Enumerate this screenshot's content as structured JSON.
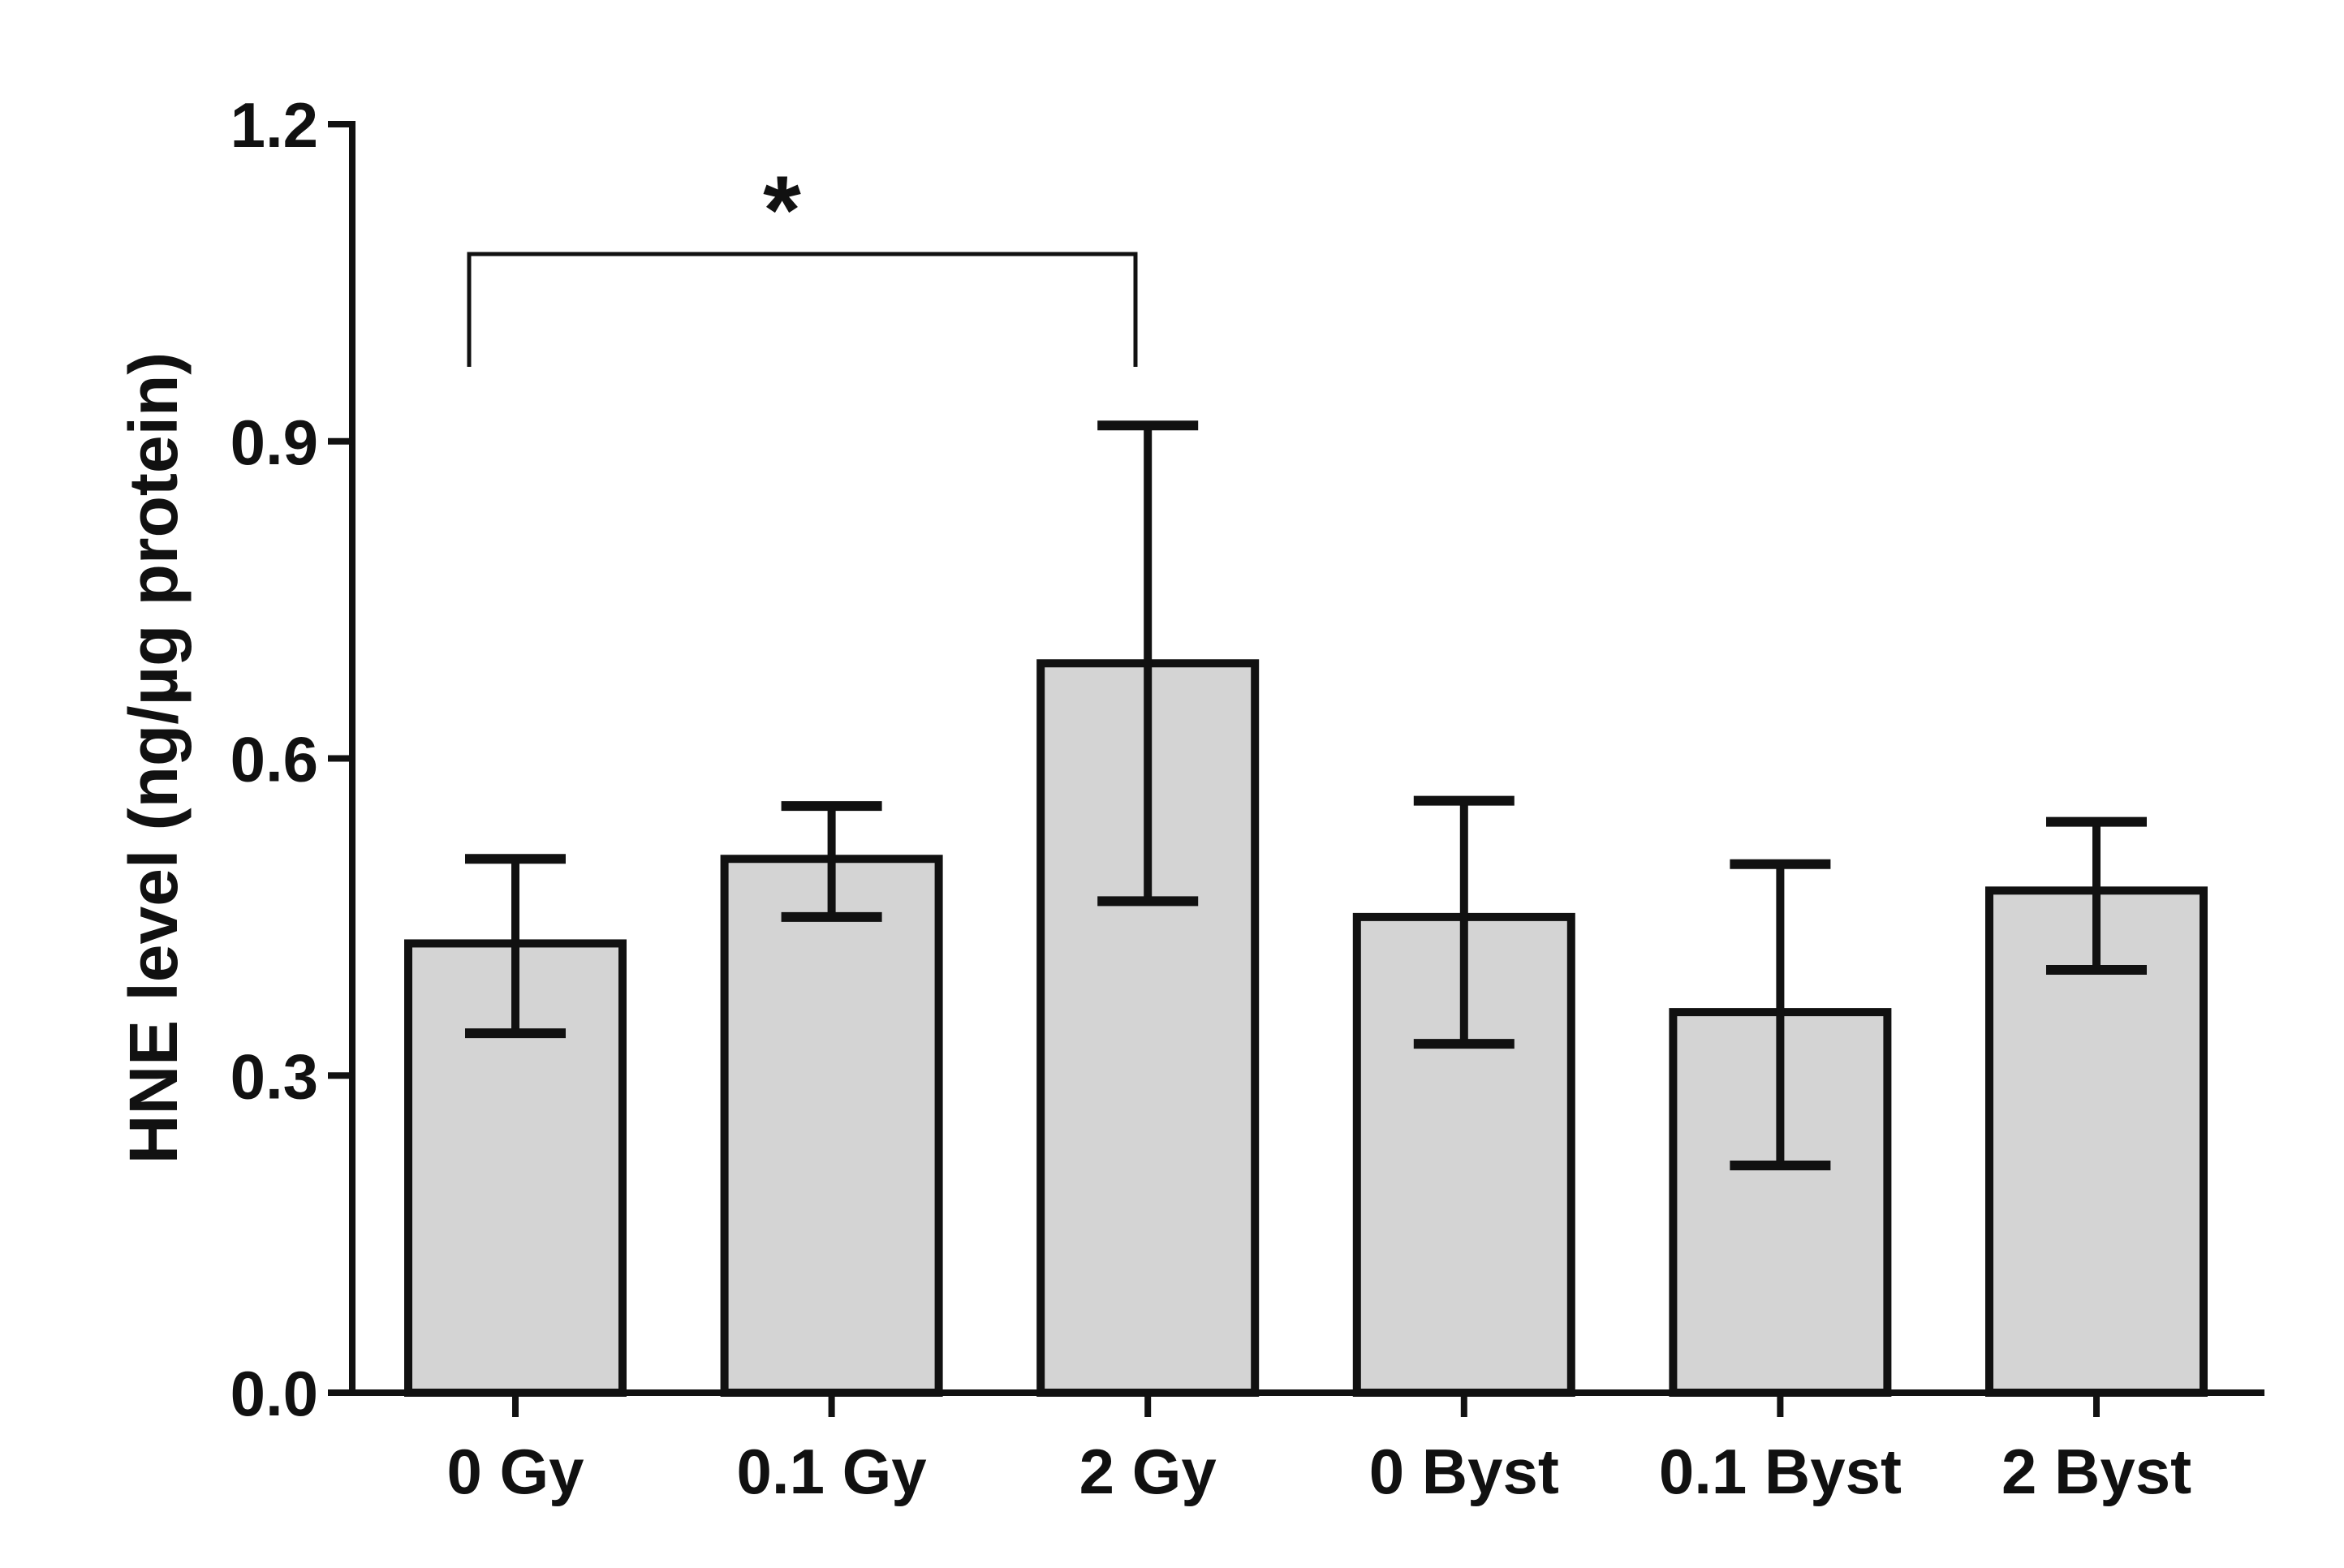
{
  "chart_data": {
    "type": "bar",
    "title": "",
    "xlabel": "",
    "ylabel": "HNE level (ng/µg protein)",
    "ylim": [
      0,
      1.2
    ],
    "yticks": [
      0.0,
      0.3,
      0.6,
      0.9,
      1.2
    ],
    "ytick_labels": [
      "0.0",
      "0.3",
      "0.6",
      "0.9",
      "1.2"
    ],
    "grid": false,
    "categories": [
      "0 Gy",
      "0.1 Gy",
      "2 Gy",
      "0 Byst",
      "0.1 Byst",
      "2 Byst"
    ],
    "values": [
      0.425,
      0.505,
      0.69,
      0.45,
      0.36,
      0.475
    ],
    "error_low": [
      0.34,
      0.45,
      0.465,
      0.33,
      0.215,
      0.4
    ],
    "error_high": [
      0.505,
      0.555,
      0.915,
      0.56,
      0.5,
      0.54
    ],
    "significance": [
      {
        "from": "0 Gy",
        "to": "2 Gy",
        "label": "*"
      }
    ],
    "colors": {
      "bar_fill": "#d4d4d4",
      "bar_stroke": "#111111",
      "axis": "#111111",
      "text": "#111111"
    }
  }
}
